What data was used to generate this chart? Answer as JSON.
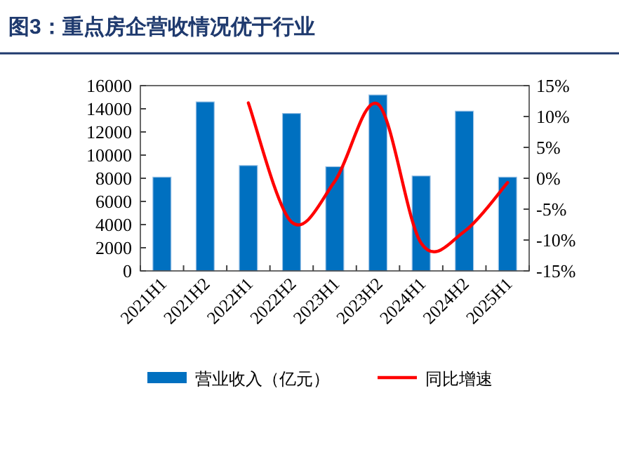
{
  "chart_data": {
    "type": "bar",
    "title": "图3：重点房企营收情况优于行业",
    "categories": [
      "2021H1",
      "2021H2",
      "2022H1",
      "2022H2",
      "2023H1",
      "2023H2",
      "2024H1",
      "2024H2",
      "2025H1"
    ],
    "series": [
      {
        "name": "营业收入（亿元）",
        "color": "#0070c0",
        "values": [
          8100,
          14600,
          9100,
          13600,
          9000,
          15200,
          8200,
          13800,
          8100
        ]
      },
      {
        "name": "同比增速",
        "type": "line",
        "axis": "y2",
        "color": "#ff0000",
        "values": [
          null,
          null,
          12.2,
          -7.1,
          -0.5,
          12.0,
          -10.5,
          -8.6,
          -0.7
        ]
      }
    ],
    "ylim": [
      0,
      16000
    ],
    "yticks": [
      0,
      2000,
      4000,
      6000,
      8000,
      10000,
      12000,
      14000,
      16000
    ],
    "y2lim": [
      -15,
      15
    ],
    "y2ticks": [
      {
        "value": -15,
        "label": "-15%"
      },
      {
        "value": -10,
        "label": "-10%"
      },
      {
        "value": -5,
        "label": "-5%"
      },
      {
        "value": 0,
        "label": "0%"
      },
      {
        "value": 5,
        "label": "5%"
      },
      {
        "value": 10,
        "label": "10%"
      },
      {
        "value": 15,
        "label": "15%"
      }
    ],
    "legend": "bottom"
  }
}
